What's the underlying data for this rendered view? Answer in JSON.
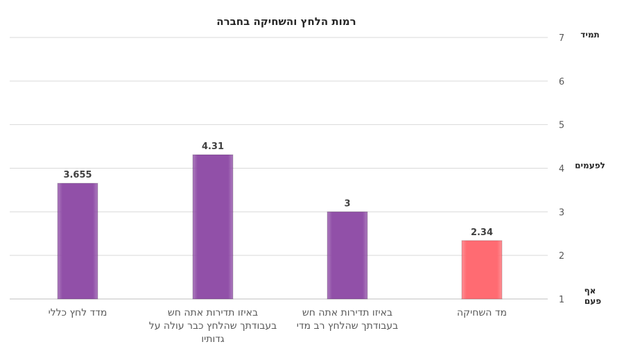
{
  "chart_data": {
    "type": "bar",
    "title": "רמות הלחץ והשחיקה בחברה",
    "categories": [
      [
        "מדד לחץ כללי"
      ],
      [
        "באיזו תדירות אתה חש",
        "בעבודתך שהלחץ כבר עולה על",
        "גדותיו"
      ],
      [
        "באיזו תדירות אתה חש",
        "בעבודתך שהלחץ רב מדי"
      ],
      [
        "מד השחיקה"
      ]
    ],
    "values": [
      3.655,
      4.31,
      3,
      2.34
    ],
    "value_labels": [
      "3.655",
      "4.31",
      "3",
      "2.34"
    ],
    "bar_colors": [
      "#9150a8",
      "#9150a8",
      "#9150a8",
      "#ff6b72"
    ],
    "ylim": [
      1,
      7
    ],
    "yticks": [
      1,
      2,
      3,
      4,
      5,
      6,
      7
    ],
    "grid": true,
    "y_axis_side": "right",
    "scale_labels": [
      {
        "at": 7,
        "lines": [
          "תמיד"
        ]
      },
      {
        "at": 4,
        "lines": [
          "לפעמים"
        ]
      },
      {
        "at": 1,
        "lines": [
          "אף",
          "פעם"
        ]
      }
    ]
  }
}
